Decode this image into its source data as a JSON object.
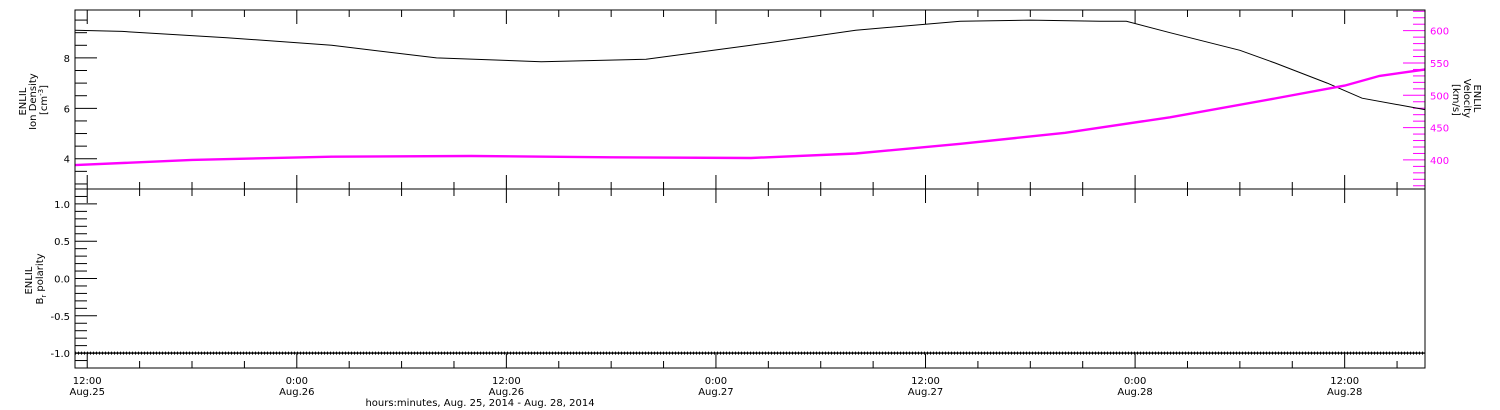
{
  "chart_data": [
    {
      "type": "line",
      "panel": "top",
      "x_unit": "hours since Aug. 25, 2014 0:00",
      "xlim": [
        11.3,
        88.6
      ],
      "x_tick_labels": [
        {
          "x": 12,
          "time": "12:00",
          "date": "Aug.25"
        },
        {
          "x": 24,
          "time": "0:00",
          "date": "Aug.26"
        },
        {
          "x": 36,
          "time": "12:00",
          "date": "Aug.26"
        },
        {
          "x": 48,
          "time": "0:00",
          "date": "Aug.27"
        },
        {
          "x": 60,
          "time": "12:00",
          "date": "Aug.27"
        },
        {
          "x": 72,
          "time": "0:00",
          "date": "Aug.28"
        },
        {
          "x": 84,
          "time": "12:00",
          "date": "Aug.28"
        }
      ],
      "left_axis": {
        "label_lines": [
          "ENLIL",
          "Ion Density"
        ],
        "unit_base": "[cm",
        "unit_sup": "-3",
        "unit_end": "]",
        "ylim": [
          2.8,
          9.9
        ],
        "ticks": [
          4,
          6,
          8
        ],
        "tick_labels": [
          "4",
          "6",
          "8"
        ],
        "color": "#000000"
      },
      "right_axis": {
        "label_lines": [
          "ENLIL",
          "Velocity",
          "[km/s]"
        ],
        "ylim": [
          355,
          632
        ],
        "ticks": [
          400,
          450,
          500,
          550,
          600
        ],
        "tick_labels": [
          "400",
          "450",
          "500",
          "550",
          "600"
        ],
        "color": "#ff00ff"
      },
      "series": [
        {
          "axis": "left",
          "color": "#000000",
          "x": [
            11.3,
            14,
            20,
            26,
            32,
            38,
            44,
            50,
            56,
            62,
            66,
            70,
            71.5,
            74,
            78,
            80,
            83,
            85,
            88.6
          ],
          "y": [
            9.1,
            9.05,
            8.8,
            8.5,
            8.0,
            7.85,
            7.95,
            8.5,
            9.1,
            9.45,
            9.5,
            9.45,
            9.45,
            9.0,
            8.3,
            7.8,
            7.0,
            6.4,
            5.95
          ]
        },
        {
          "axis": "right",
          "color": "#ff00ff",
          "x": [
            11.3,
            18,
            26,
            34,
            42,
            50,
            56,
            62,
            68,
            74,
            80,
            84,
            86,
            88.6
          ],
          "y": [
            392,
            400,
            405,
            406,
            404,
            403,
            410,
            425,
            442,
            466,
            495,
            515,
            530,
            540
          ]
        }
      ]
    },
    {
      "type": "line",
      "panel": "bottom",
      "x_unit": "hours since Aug. 25, 2014 0:00",
      "xlim": [
        11.3,
        88.6
      ],
      "xlabel": "hours:minutes, Aug. 25, 2014 - Aug. 28, 2014",
      "left_axis": {
        "label_lines": [
          "ENLIL"
        ],
        "label_br_main": "B",
        "label_br_sub": "r",
        "label_br_rest": " polarity",
        "ylim": [
          -1.2,
          1.2
        ],
        "ticks": [
          -1.0,
          -0.5,
          0.0,
          0.5,
          1.0
        ],
        "tick_labels": [
          "-1.0",
          "-0.5",
          "0.0",
          "0.5",
          "1.0"
        ]
      },
      "series": [
        {
          "color": "#000000",
          "x": [
            11.3,
            88.6
          ],
          "y": [
            -1.0,
            -1.0
          ]
        }
      ]
    }
  ]
}
